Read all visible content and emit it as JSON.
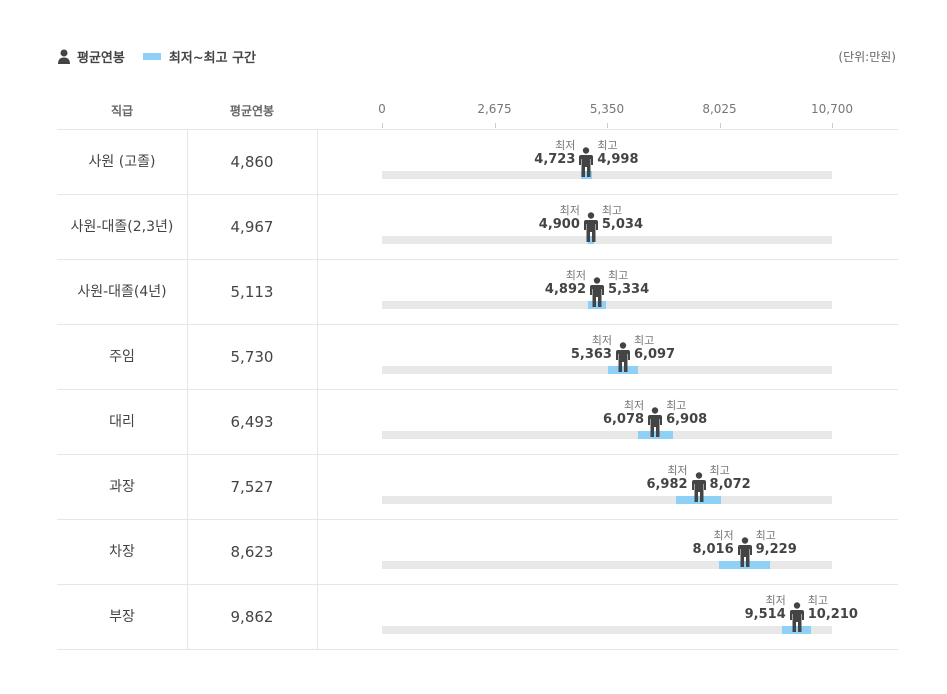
{
  "legend": {
    "avg_label": "평균연봉",
    "range_label": "최저~최고 구간"
  },
  "unit": "(단위:만원)",
  "header": {
    "grade": "직급",
    "avg": "평균연봉"
  },
  "labels": {
    "min_caption": "최저",
    "max_caption": "최고"
  },
  "colors": {
    "range": "#8fd0f7",
    "track": "#e8e8e8",
    "figure": "#444444"
  },
  "chart_data": {
    "type": "range-bar",
    "xlim": [
      0,
      10700
    ],
    "ticks": [
      0,
      2675,
      5350,
      8025,
      10700
    ],
    "tick_labels": [
      "0",
      "2,675",
      "5,350",
      "8,025",
      "10,700"
    ],
    "rows": [
      {
        "grade": "사원 (고졸)",
        "avg": 4860,
        "avg_label": "4,860",
        "min": 4723,
        "min_label": "4,723",
        "max": 4998,
        "max_label": "4,998"
      },
      {
        "grade": "사원-대졸(2,3년)",
        "avg": 4967,
        "avg_label": "4,967",
        "min": 4900,
        "min_label": "4,900",
        "max": 5034,
        "max_label": "5,034"
      },
      {
        "grade": "사원-대졸(4년)",
        "avg": 5113,
        "avg_label": "5,113",
        "min": 4892,
        "min_label": "4,892",
        "max": 5334,
        "max_label": "5,334"
      },
      {
        "grade": "주임",
        "avg": 5730,
        "avg_label": "5,730",
        "min": 5363,
        "min_label": "5,363",
        "max": 6097,
        "max_label": "6,097"
      },
      {
        "grade": "대리",
        "avg": 6493,
        "avg_label": "6,493",
        "min": 6078,
        "min_label": "6,078",
        "max": 6908,
        "max_label": "6,908"
      },
      {
        "grade": "과장",
        "avg": 7527,
        "avg_label": "7,527",
        "min": 6982,
        "min_label": "6,982",
        "max": 8072,
        "max_label": "8,072"
      },
      {
        "grade": "차장",
        "avg": 8623,
        "avg_label": "8,623",
        "min": 8016,
        "min_label": "8,016",
        "max": 9229,
        "max_label": "9,229"
      },
      {
        "grade": "부장",
        "avg": 9862,
        "avg_label": "9,862",
        "min": 9514,
        "min_label": "9,514",
        "max": 10210,
        "max_label": "10,210"
      }
    ]
  }
}
